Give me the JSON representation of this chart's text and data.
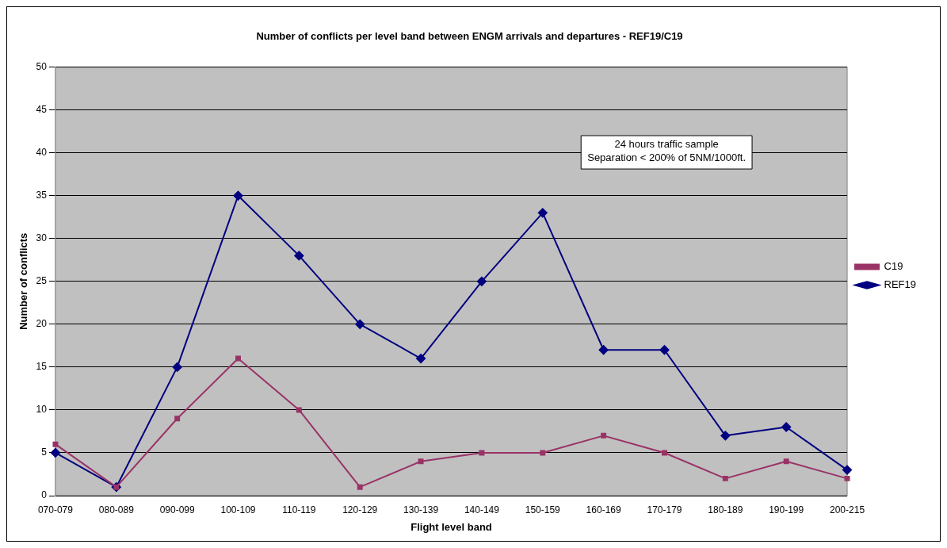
{
  "chart_data": {
    "type": "line",
    "title": "Number of conflicts per level band between ENGM arrivals and departures - REF19/C19",
    "xlabel": "Flight level band",
    "ylabel": "Number of conflicts",
    "categories": [
      "070-079",
      "080-089",
      "090-099",
      "100-109",
      "110-119",
      "120-129",
      "130-139",
      "140-149",
      "150-159",
      "160-169",
      "170-179",
      "180-189",
      "190-199",
      "200-215"
    ],
    "series": [
      {
        "name": "REF19",
        "color": "#000080",
        "marker": "diamond",
        "values": [
          5,
          1,
          15,
          35,
          28,
          20,
          16,
          25,
          33,
          17,
          17,
          7,
          8,
          3
        ]
      },
      {
        "name": "C19",
        "color": "#993366",
        "marker": "square",
        "values": [
          6,
          1,
          9,
          16,
          10,
          1,
          4,
          5,
          5,
          7,
          5,
          2,
          4,
          2
        ]
      }
    ],
    "ylim": [
      0,
      50
    ],
    "yticks": [
      0,
      5,
      10,
      15,
      20,
      25,
      30,
      35,
      40,
      45,
      50
    ],
    "grid": "y",
    "legend": "right",
    "annotations": [
      "24 hours traffic sample",
      "Separation < 200% of 5NM/1000ft."
    ]
  }
}
